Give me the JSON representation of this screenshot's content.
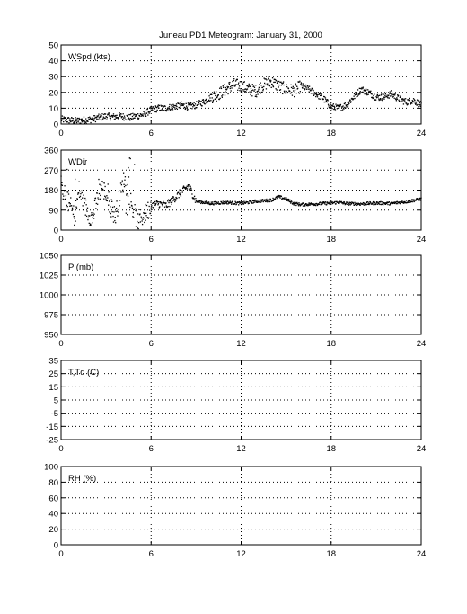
{
  "title": "Juneau PD1 Meteogram:   January 31, 2000",
  "x_ticks": [
    "0",
    "6",
    "12",
    "18",
    "24"
  ],
  "chart_data": [
    {
      "type": "scatter",
      "label": "WSpd (kts)",
      "xlim": [
        0,
        24
      ],
      "ylim": [
        0,
        50
      ],
      "y_ticks": [
        "0",
        "10",
        "20",
        "30",
        "40",
        "50"
      ],
      "grid": true,
      "marker_color": "#000000",
      "trend": [
        [
          0,
          3
        ],
        [
          0.5,
          2.5
        ],
        [
          1,
          2
        ],
        [
          1.5,
          2.5
        ],
        [
          2,
          3
        ],
        [
          2.5,
          4
        ],
        [
          3,
          5
        ],
        [
          3.5,
          4.5
        ],
        [
          4,
          5
        ],
        [
          4.5,
          4
        ],
        [
          5,
          5
        ],
        [
          5.5,
          6
        ],
        [
          6,
          9
        ],
        [
          6.5,
          10
        ],
        [
          7,
          10
        ],
        [
          7.5,
          11
        ],
        [
          8,
          12
        ],
        [
          8.5,
          11
        ],
        [
          9,
          12
        ],
        [
          9.5,
          14
        ],
        [
          10,
          17
        ],
        [
          10.5,
          19
        ],
        [
          11,
          22
        ],
        [
          11.5,
          25
        ],
        [
          12,
          24
        ],
        [
          12.5,
          22
        ],
        [
          13,
          21
        ],
        [
          13.5,
          25
        ],
        [
          14,
          27
        ],
        [
          14.5,
          24
        ],
        [
          15,
          22
        ],
        [
          15.5,
          21
        ],
        [
          16,
          24
        ],
        [
          16.5,
          22
        ],
        [
          17,
          19
        ],
        [
          17.5,
          16
        ],
        [
          18,
          11
        ],
        [
          18.5,
          10
        ],
        [
          19,
          12
        ],
        [
          19.5,
          17
        ],
        [
          20,
          22
        ],
        [
          20.5,
          20
        ],
        [
          21,
          17
        ],
        [
          21.5,
          17
        ],
        [
          22,
          19
        ],
        [
          22.5,
          16
        ],
        [
          23,
          14
        ],
        [
          23.5,
          15
        ],
        [
          24,
          12
        ]
      ]
    },
    {
      "type": "scatter",
      "label": "WDir",
      "xlim": [
        0,
        24
      ],
      "ylim": [
        0,
        360
      ],
      "y_ticks": [
        "0",
        "90",
        "180",
        "270",
        "360"
      ],
      "grid": true,
      "marker_color": "#000000",
      "trend": [
        [
          0,
          200
        ],
        [
          0.3,
          150
        ],
        [
          0.6,
          110
        ],
        [
          0.9,
          60
        ],
        [
          1.2,
          180
        ],
        [
          1.5,
          120
        ],
        [
          1.8,
          80
        ],
        [
          2.1,
          50
        ],
        [
          2.4,
          140
        ],
        [
          2.7,
          200
        ],
        [
          3,
          160
        ],
        [
          3.3,
          110
        ],
        [
          3.6,
          60
        ],
        [
          3.9,
          150
        ],
        [
          4.2,
          230
        ],
        [
          4.5,
          170
        ],
        [
          4.8,
          90
        ],
        [
          5.1,
          40
        ],
        [
          5.4,
          60
        ],
        [
          5.7,
          80
        ],
        [
          6,
          110
        ],
        [
          6.5,
          120
        ],
        [
          7,
          110
        ],
        [
          7.5,
          140
        ],
        [
          8,
          170
        ],
        [
          8.5,
          200
        ],
        [
          9,
          130
        ],
        [
          9.5,
          125
        ],
        [
          10,
          120
        ],
        [
          11,
          125
        ],
        [
          12,
          120
        ],
        [
          13,
          130
        ],
        [
          14,
          135
        ],
        [
          14.5,
          150
        ],
        [
          15,
          140
        ],
        [
          15.5,
          120
        ],
        [
          16,
          115
        ],
        [
          17,
          118
        ],
        [
          18,
          122
        ],
        [
          18.5,
          125
        ],
        [
          19,
          120
        ],
        [
          20,
          118
        ],
        [
          21,
          122
        ],
        [
          22,
          120
        ],
        [
          23,
          128
        ],
        [
          24,
          140
        ]
      ]
    },
    {
      "type": "scatter",
      "label": "P (mb)",
      "xlim": [
        0,
        24
      ],
      "ylim": [
        950,
        1050
      ],
      "y_ticks": [
        "950",
        "975",
        "1000",
        "1025",
        "1050"
      ],
      "grid": true,
      "trend": []
    },
    {
      "type": "line",
      "label": "T,Td (C)",
      "xlim": [
        0,
        24
      ],
      "ylim": [
        -25,
        35
      ],
      "y_ticks": [
        "-25",
        "-15",
        "-5",
        "5",
        "15",
        "25",
        "35"
      ],
      "grid": true,
      "trend": []
    },
    {
      "type": "line",
      "label": "RH (%)",
      "xlim": [
        0,
        24
      ],
      "ylim": [
        0,
        100
      ],
      "y_ticks": [
        "0",
        "20",
        "40",
        "60",
        "80",
        "100"
      ],
      "grid": true,
      "trend": []
    }
  ]
}
